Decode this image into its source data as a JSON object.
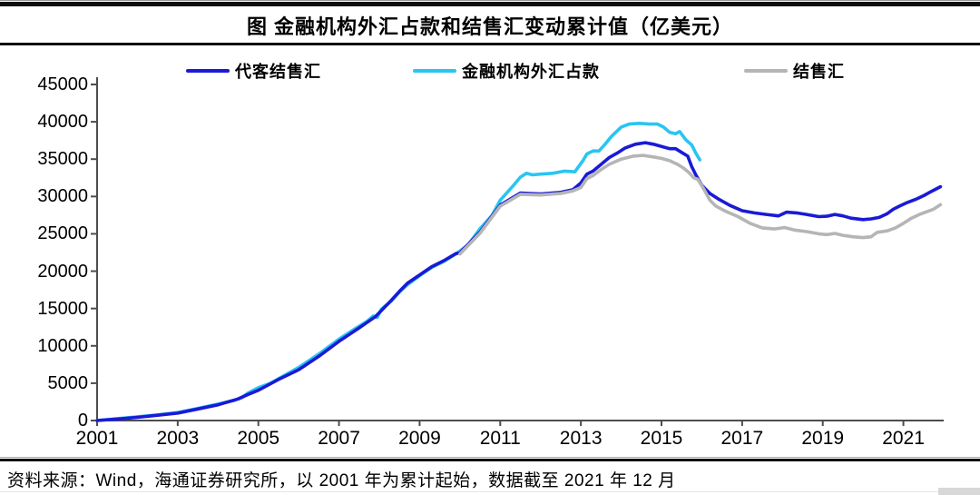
{
  "header": {
    "title": "图 金融机构外汇占款和结售汇变动累计值（亿美元）"
  },
  "footer": {
    "source_note": "资料来源：Wind，海通证券研究所，以 2001 年为累计起始，数据截至 2021 年 12 月"
  },
  "chart_data": {
    "type": "line",
    "title": "图 金融机构外汇占款和结售汇变动累计值（亿美元）",
    "xlabel": "",
    "ylabel": "",
    "unit": "亿美元",
    "xlim": [
      2001,
      2022
    ],
    "ylim": [
      0,
      45000
    ],
    "xticks": [
      2001,
      2003,
      2005,
      2007,
      2009,
      2011,
      2013,
      2015,
      2017,
      2019,
      2021
    ],
    "yticks": [
      0,
      5000,
      10000,
      15000,
      20000,
      25000,
      30000,
      35000,
      40000,
      45000
    ],
    "grid": false,
    "legend_position": "top",
    "axis_color": "#4d4d4d",
    "draw_order": [
      1,
      0,
      2
    ],
    "series": [
      {
        "name": "代客结售汇",
        "color": "#1A1AD6",
        "points": [
          [
            2001,
            0
          ],
          [
            2001.5,
            200
          ],
          [
            2002,
            430
          ],
          [
            2002.5,
            700
          ],
          [
            2003,
            1000
          ],
          [
            2003.5,
            1550
          ],
          [
            2004,
            2100
          ],
          [
            2004.5,
            2900
          ],
          [
            2004.75,
            3500
          ],
          [
            2005,
            4050
          ],
          [
            2005.5,
            5500
          ],
          [
            2006,
            6800
          ],
          [
            2006.5,
            8600
          ],
          [
            2007,
            10600
          ],
          [
            2007.5,
            12400
          ],
          [
            2007.9,
            13900
          ],
          [
            2008.1,
            15000
          ],
          [
            2008.3,
            16100
          ],
          [
            2008.5,
            17300
          ],
          [
            2008.7,
            18400
          ],
          [
            2009,
            19500
          ],
          [
            2009.3,
            20600
          ],
          [
            2009.6,
            21400
          ],
          [
            2009.9,
            22350
          ],
          [
            2010,
            22450
          ],
          [
            2010.5,
            25250
          ],
          [
            2011,
            28850
          ],
          [
            2011.5,
            30450
          ],
          [
            2012,
            30350
          ],
          [
            2012.5,
            30550
          ],
          [
            2012.8,
            30900
          ],
          [
            2013,
            31800
          ],
          [
            2013.15,
            33000
          ],
          [
            2013.3,
            33400
          ],
          [
            2013.5,
            34300
          ],
          [
            2013.7,
            35200
          ],
          [
            2013.9,
            35800
          ],
          [
            2014.1,
            36500
          ],
          [
            2014.35,
            37000
          ],
          [
            2014.6,
            37200
          ],
          [
            2014.8,
            37000
          ],
          [
            2015,
            36700
          ],
          [
            2015.2,
            36400
          ],
          [
            2015.35,
            36400
          ],
          [
            2015.5,
            35900
          ],
          [
            2015.65,
            35400
          ],
          [
            2015.75,
            34000
          ],
          [
            2015.85,
            32900
          ],
          [
            2016,
            31500
          ],
          [
            2016.2,
            30400
          ],
          [
            2016.4,
            29700
          ],
          [
            2016.7,
            28800
          ],
          [
            2017,
            28100
          ],
          [
            2017.3,
            27800
          ],
          [
            2017.6,
            27600
          ],
          [
            2017.9,
            27400
          ],
          [
            2018.1,
            27900
          ],
          [
            2018.35,
            27800
          ],
          [
            2018.6,
            27600
          ],
          [
            2018.9,
            27300
          ],
          [
            2019.1,
            27350
          ],
          [
            2019.3,
            27600
          ],
          [
            2019.5,
            27400
          ],
          [
            2019.7,
            27100
          ],
          [
            2020,
            26900
          ],
          [
            2020.2,
            27000
          ],
          [
            2020.4,
            27200
          ],
          [
            2020.6,
            27700
          ],
          [
            2020.75,
            28300
          ],
          [
            2020.9,
            28700
          ],
          [
            2021.1,
            29200
          ],
          [
            2021.3,
            29600
          ],
          [
            2021.5,
            30100
          ],
          [
            2021.7,
            30700
          ],
          [
            2021.92,
            31300
          ]
        ]
      },
      {
        "name": "金融机构外汇占款",
        "color": "#29C5F2",
        "points": [
          [
            2001,
            0
          ],
          [
            2001.5,
            250
          ],
          [
            2002,
            500
          ],
          [
            2002.5,
            760
          ],
          [
            2003,
            1070
          ],
          [
            2003.5,
            1620
          ],
          [
            2004,
            2200
          ],
          [
            2004.4,
            2700
          ],
          [
            2004.6,
            3100
          ],
          [
            2004.75,
            3700
          ],
          [
            2005,
            4400
          ],
          [
            2005.3,
            5000
          ],
          [
            2005.6,
            5900
          ],
          [
            2006,
            7100
          ],
          [
            2006.5,
            8900
          ],
          [
            2007,
            10900
          ],
          [
            2007.4,
            12300
          ],
          [
            2007.7,
            13300
          ],
          [
            2007.85,
            14000
          ],
          [
            2007.95,
            13800
          ],
          [
            2008.05,
            14900
          ],
          [
            2008.3,
            16000
          ],
          [
            2008.5,
            17200
          ],
          [
            2008.7,
            18200
          ],
          [
            2009,
            19400
          ],
          [
            2009.3,
            20500
          ],
          [
            2009.6,
            21300
          ],
          [
            2009.9,
            22300
          ],
          [
            2010.2,
            23500
          ],
          [
            2010.5,
            25700
          ],
          [
            2010.8,
            27500
          ],
          [
            2011,
            29500
          ],
          [
            2011.3,
            31300
          ],
          [
            2011.5,
            32600
          ],
          [
            2011.65,
            33100
          ],
          [
            2011.8,
            32900
          ],
          [
            2012,
            33000
          ],
          [
            2012.3,
            33100
          ],
          [
            2012.6,
            33400
          ],
          [
            2012.85,
            33300
          ],
          [
            2013.05,
            34800
          ],
          [
            2013.15,
            35700
          ],
          [
            2013.3,
            36100
          ],
          [
            2013.45,
            36100
          ],
          [
            2013.6,
            37000
          ],
          [
            2013.75,
            38000
          ],
          [
            2014,
            39300
          ],
          [
            2014.2,
            39700
          ],
          [
            2014.45,
            39800
          ],
          [
            2014.7,
            39700
          ],
          [
            2014.9,
            39700
          ],
          [
            2015.05,
            39300
          ],
          [
            2015.2,
            38600
          ],
          [
            2015.35,
            38400
          ],
          [
            2015.45,
            38700
          ],
          [
            2015.6,
            37600
          ],
          [
            2015.75,
            36900
          ],
          [
            2015.85,
            35800
          ],
          [
            2015.95,
            34900
          ]
        ]
      },
      {
        "name": "结售汇",
        "color": "#B5B5B5",
        "points": [
          [
            2010,
            22300
          ],
          [
            2010.5,
            25100
          ],
          [
            2011,
            28700
          ],
          [
            2011.5,
            30300
          ],
          [
            2012,
            30200
          ],
          [
            2012.5,
            30400
          ],
          [
            2012.8,
            30750
          ],
          [
            2013,
            31200
          ],
          [
            2013.15,
            32400
          ],
          [
            2013.3,
            32800
          ],
          [
            2013.5,
            33600
          ],
          [
            2013.7,
            34300
          ],
          [
            2014,
            35000
          ],
          [
            2014.3,
            35400
          ],
          [
            2014.55,
            35500
          ],
          [
            2014.8,
            35300
          ],
          [
            2015,
            35100
          ],
          [
            2015.2,
            34800
          ],
          [
            2015.4,
            34300
          ],
          [
            2015.55,
            33800
          ],
          [
            2015.7,
            33100
          ],
          [
            2015.8,
            32500
          ],
          [
            2015.9,
            32300
          ],
          [
            2016.05,
            31000
          ],
          [
            2016.2,
            29500
          ],
          [
            2016.35,
            28700
          ],
          [
            2016.6,
            28000
          ],
          [
            2016.9,
            27300
          ],
          [
            2017.2,
            26400
          ],
          [
            2017.5,
            25800
          ],
          [
            2017.8,
            25650
          ],
          [
            2018.05,
            25850
          ],
          [
            2018.3,
            25500
          ],
          [
            2018.6,
            25300
          ],
          [
            2018.9,
            25000
          ],
          [
            2019.1,
            24900
          ],
          [
            2019.3,
            25050
          ],
          [
            2019.5,
            24800
          ],
          [
            2019.75,
            24600
          ],
          [
            2020,
            24500
          ],
          [
            2020.2,
            24600
          ],
          [
            2020.35,
            25200
          ],
          [
            2020.6,
            25400
          ],
          [
            2020.8,
            25800
          ],
          [
            2021,
            26400
          ],
          [
            2021.2,
            27100
          ],
          [
            2021.4,
            27600
          ],
          [
            2021.6,
            28000
          ],
          [
            2021.75,
            28300
          ],
          [
            2021.92,
            28900
          ]
        ]
      }
    ]
  }
}
